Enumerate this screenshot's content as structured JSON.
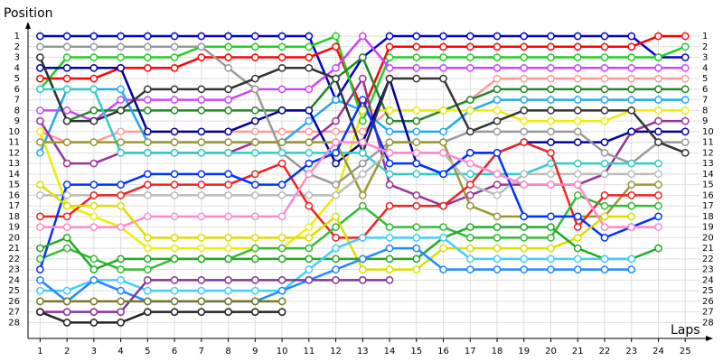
{
  "chart_data": {
    "type": "line",
    "y_label": "Position",
    "x_label": "Laps",
    "x": [
      1,
      2,
      3,
      4,
      5,
      6,
      7,
      8,
      9,
      10,
      11,
      12,
      13,
      14,
      15,
      16,
      17,
      18,
      19,
      20,
      21,
      22,
      23,
      24,
      25
    ],
    "xlim": [
      0.55,
      25.9
    ],
    "ylim": [
      29.5,
      0.4
    ],
    "xticks": [
      1,
      2,
      3,
      4,
      5,
      6,
      7,
      8,
      9,
      10,
      11,
      12,
      13,
      14,
      15,
      16,
      17,
      18,
      19,
      20,
      21,
      22,
      23,
      24,
      25
    ],
    "yticks": [
      1,
      2,
      3,
      4,
      5,
      6,
      7,
      8,
      9,
      10,
      11,
      12,
      13,
      14,
      15,
      16,
      17,
      18,
      19,
      20,
      21,
      22,
      23,
      24,
      25,
      26,
      27,
      28
    ],
    "grid": true,
    "series": [
      {
        "color": "#0000cc",
        "values": [
          1,
          1,
          1,
          1,
          1,
          1,
          1,
          1,
          1,
          1,
          1,
          7,
          3,
          1,
          1,
          1,
          1,
          1,
          1,
          1,
          1,
          1,
          1,
          3,
          3
        ]
      },
      {
        "color": "#ff0000",
        "values": [
          5,
          5,
          5,
          4,
          4,
          4,
          3,
          3,
          3,
          3,
          3,
          2,
          8,
          2,
          2,
          2,
          2,
          2,
          2,
          2,
          2,
          2,
          2,
          1,
          1
        ]
      },
      {
        "color": "#22cc22",
        "values": [
          6,
          3,
          3,
          3,
          3,
          3,
          2,
          2,
          2,
          2,
          2,
          1,
          9,
          3,
          3,
          3,
          3,
          3,
          3,
          3,
          3,
          3,
          3,
          3,
          2
        ]
      },
      {
        "color": "#cc44ff",
        "values": [
          8,
          8,
          9,
          7,
          7,
          7,
          7,
          7,
          6,
          6,
          6,
          4,
          1,
          4,
          4,
          4,
          4,
          4,
          4,
          4,
          4,
          4,
          4,
          4,
          4
        ]
      },
      {
        "color": "#ff9999",
        "values": [
          10,
          11,
          11,
          10,
          10,
          10,
          10,
          10,
          10,
          10,
          10,
          10,
          10,
          8,
          8,
          8,
          7,
          5,
          5,
          5,
          5,
          5,
          5,
          5,
          5
        ]
      },
      {
        "color": "#228822",
        "values": [
          3,
          9,
          8,
          8,
          8,
          8,
          8,
          8,
          8,
          8,
          8,
          5,
          3,
          9,
          9,
          8,
          7,
          6,
          6,
          6,
          6,
          6,
          6,
          6,
          6
        ]
      },
      {
        "color": "#22aaee",
        "values": [
          12,
          6,
          6,
          6,
          11,
          11,
          11,
          11,
          11,
          11,
          9,
          7,
          8,
          10,
          10,
          10,
          8,
          7,
          7,
          7,
          7,
          7,
          7,
          7,
          7
        ]
      },
      {
        "color": "#eeee00",
        "values": [
          10,
          17,
          18,
          19,
          21,
          21,
          21,
          21,
          21,
          21,
          19,
          16,
          8,
          8,
          8,
          8,
          8,
          8,
          9,
          9,
          9,
          9,
          8,
          8,
          8
        ]
      },
      {
        "color": "#993399",
        "values": [
          9,
          13,
          13,
          12,
          12,
          12,
          12,
          12,
          11,
          11,
          11,
          9,
          5,
          15,
          16,
          17,
          16,
          15,
          15,
          15,
          15,
          14,
          10,
          9,
          9
        ]
      },
      {
        "color": "#000099",
        "values": [
          4,
          4,
          4,
          4,
          10,
          10,
          10,
          10,
          9,
          8,
          8,
          13,
          11,
          5,
          13,
          14,
          12,
          12,
          11,
          11,
          11,
          11,
          10,
          10,
          10
        ]
      },
      {
        "color": "#999999",
        "values": [
          2,
          2,
          2,
          2,
          2,
          2,
          2,
          4,
          6,
          12,
          14,
          15,
          13,
          11,
          11,
          11,
          10,
          10,
          10,
          10,
          10,
          12,
          13,
          11,
          11
        ]
      },
      {
        "color": "#333333",
        "values": [
          3,
          9,
          9,
          8,
          6,
          6,
          6,
          6,
          5,
          4,
          4,
          5,
          12,
          5,
          5,
          5,
          10,
          9,
          8,
          8,
          8,
          8,
          8,
          11,
          12
        ]
      },
      {
        "color": "#33cccc",
        "values": [
          6,
          6,
          6,
          12,
          12,
          12,
          12,
          12,
          12,
          12,
          12,
          12,
          12,
          14,
          14,
          14,
          14,
          14,
          14,
          13,
          13,
          13,
          13,
          13,
          null
        ]
      },
      {
        "color": "#999933",
        "values": [
          11,
          11,
          11,
          11,
          11,
          11,
          11,
          11,
          11,
          11,
          11,
          11,
          16,
          11,
          11,
          11,
          17,
          18,
          18,
          18,
          18,
          18,
          15,
          15,
          null
        ]
      },
      {
        "color": "#bbbbbb",
        "values": [
          16,
          16,
          16,
          16,
          16,
          16,
          16,
          16,
          16,
          16,
          16,
          16,
          14,
          12,
          12,
          12,
          15,
          16,
          14,
          14,
          14,
          14,
          14,
          14,
          null
        ]
      },
      {
        "color": "#ee2222",
        "values": [
          18,
          18,
          16,
          16,
          15,
          15,
          15,
          15,
          14,
          13,
          17,
          20,
          20,
          17,
          17,
          17,
          15,
          12,
          11,
          12,
          19,
          16,
          16,
          16,
          null
        ]
      },
      {
        "color": "#33bb33",
        "values": [
          22,
          21,
          22,
          23,
          23,
          22,
          22,
          22,
          21,
          21,
          21,
          19,
          17,
          19,
          19,
          19,
          20,
          20,
          20,
          20,
          16,
          17,
          17,
          17,
          null
        ]
      },
      {
        "color": "#0033ff",
        "values": [
          23,
          15,
          15,
          15,
          14,
          14,
          14,
          14,
          15,
          15,
          13,
          12,
          7,
          13,
          13,
          14,
          12,
          12,
          18,
          18,
          18,
          20,
          19,
          18,
          null
        ]
      },
      {
        "color": "#ff88cc",
        "values": [
          19,
          19,
          19,
          19,
          18,
          18,
          18,
          18,
          18,
          18,
          14,
          11,
          11,
          12,
          12,
          12,
          13,
          14,
          15,
          15,
          15,
          19,
          19,
          19,
          null
        ]
      },
      {
        "color": "#dddd00",
        "values": [
          15,
          17,
          17,
          17,
          20,
          20,
          20,
          20,
          20,
          20,
          20,
          18,
          23,
          23,
          23,
          21,
          21,
          21,
          21,
          21,
          20,
          18,
          18,
          null,
          null
        ]
      },
      {
        "color": "#22aa22",
        "values": [
          21,
          20,
          23,
          22,
          22,
          22,
          22,
          22,
          22,
          22,
          22,
          22,
          22,
          22,
          22,
          20,
          19,
          19,
          19,
          19,
          21,
          22,
          22,
          21,
          null
        ]
      },
      {
        "color": "#44ccff",
        "values": [
          25,
          25,
          24,
          24,
          25,
          25,
          25,
          25,
          25,
          25,
          23,
          21,
          20,
          20,
          20,
          20,
          22,
          22,
          22,
          22,
          22,
          22,
          22,
          null,
          null
        ]
      },
      {
        "color": "#2288ff",
        "values": [
          24,
          26,
          24,
          25,
          26,
          26,
          26,
          26,
          26,
          25,
          24,
          23,
          22,
          21,
          21,
          23,
          23,
          23,
          23,
          23,
          23,
          23,
          23,
          null,
          null
        ]
      },
      {
        "color": "#883399",
        "values": [
          27,
          27,
          27,
          27,
          24,
          24,
          24,
          24,
          24,
          24,
          24,
          24,
          24,
          24,
          null,
          null,
          null,
          null,
          null,
          null,
          null,
          null,
          null,
          null,
          null
        ]
      },
      {
        "color": "#222222",
        "values": [
          27,
          28,
          28,
          28,
          27,
          27,
          27,
          27,
          27,
          27,
          null,
          null,
          null,
          null,
          null,
          null,
          null,
          null,
          null,
          null,
          null,
          null,
          null,
          null,
          null
        ]
      },
      {
        "color": "#777722",
        "values": [
          26,
          26,
          26,
          26,
          26,
          26,
          26,
          26,
          26,
          26,
          null,
          null,
          null,
          null,
          null,
          null,
          null,
          null,
          null,
          null,
          null,
          null,
          null,
          null,
          null
        ]
      }
    ]
  }
}
